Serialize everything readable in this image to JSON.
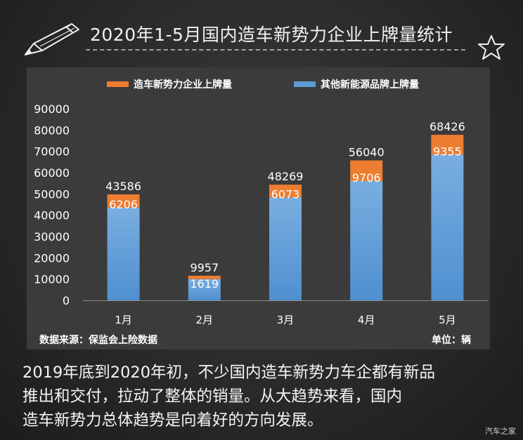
{
  "title": "2020年1-5月国内造车新势力企业上牌量统计",
  "source_note": "数据来源：保监会上险数据",
  "unit_note": "单位：辆",
  "caption_lines": [
    "2019年底到2020年初，不少国内造车新势力车企都有新品",
    "推出和交付，拉动了整体的销量。从大趋势来看，国内",
    "造车新势力总体趋势是向着好的方向发展。"
  ],
  "watermark": "汽车之家",
  "icons": {
    "pencil": "pencil-icon",
    "star": "star-icon"
  },
  "colors": {
    "new_forces": "#ed7d31",
    "other": "#5b9bd5",
    "panel": "#3b3b3b"
  },
  "chart_data": {
    "type": "bar",
    "stacked": true,
    "categories": [
      "1月",
      "2月",
      "3月",
      "4月",
      "5月"
    ],
    "series": [
      {
        "name": "其他新能源品牌上牌量",
        "values": [
          43586,
          9957,
          48269,
          56040,
          68426
        ]
      },
      {
        "name": "造车新势力企业上牌量",
        "values": [
          6206,
          1619,
          6073,
          9706,
          9355
        ]
      }
    ],
    "legend": [
      "造车新势力企业上牌量",
      "其他新能源品牌上牌量"
    ],
    "yticks": [
      "90000",
      "80000",
      "70000",
      "60000",
      "50000",
      "40000",
      "30000",
      "20000",
      "10000",
      "0"
    ],
    "ylim": [
      0,
      90000
    ],
    "legend_position": "top",
    "grid": false
  }
}
